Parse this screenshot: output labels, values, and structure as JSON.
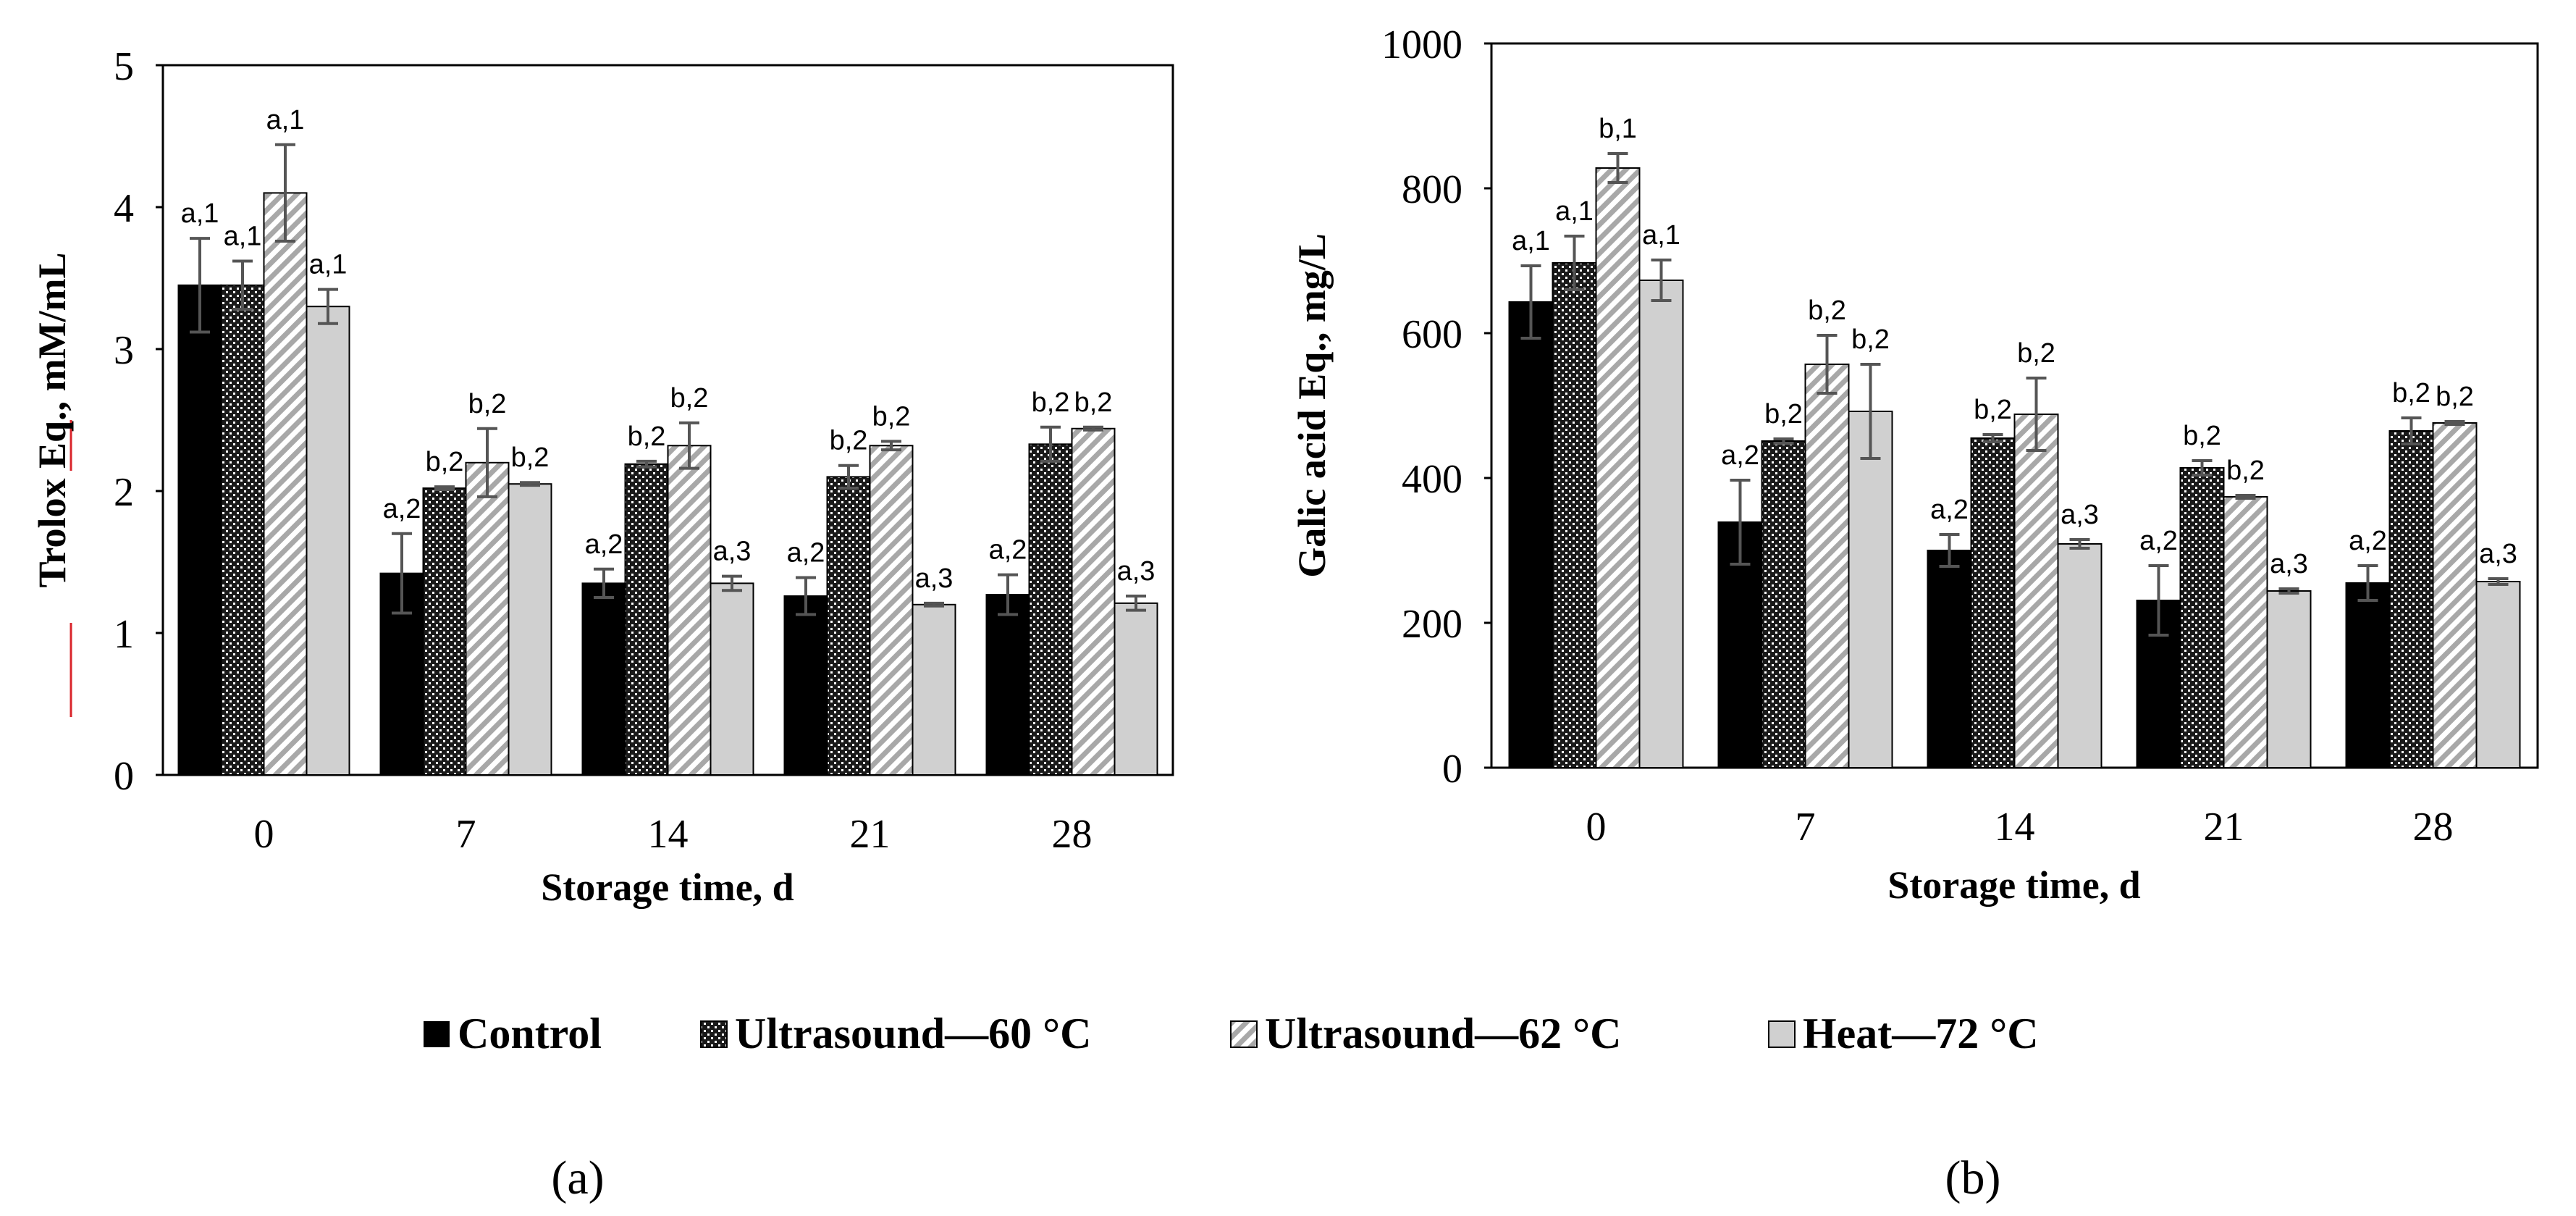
{
  "colors": {
    "control": "#000000",
    "us60": "#1a1a1a",
    "us62": "#b0b0b0",
    "heat": "#d0d0d0",
    "axis": "#000000",
    "error": "#555555",
    "underline": "#d9252b"
  },
  "legend": [
    {
      "key": "control",
      "label": "Control"
    },
    {
      "key": "us60",
      "label": "Ultrasound—60 °C"
    },
    {
      "key": "us62",
      "label": "Ultrasound—62 °C"
    },
    {
      "key": "heat",
      "label": "Heat—72 °C"
    }
  ],
  "panels": {
    "a": "(a)",
    "b": "(b)"
  },
  "chart_data": [
    {
      "type": "bar",
      "title": "",
      "xlabel": "Storage time, d",
      "ylabel": "Trolox Eq., mM/mL",
      "categories": [
        "0",
        "7",
        "14",
        "21",
        "28"
      ],
      "ylim": [
        0,
        5
      ],
      "yticks": [
        0,
        1,
        2,
        3,
        4,
        5
      ],
      "series": [
        {
          "name": "Control",
          "key": "control",
          "values": [
            3.45,
            1.42,
            1.35,
            1.26,
            1.27
          ],
          "errors": [
            0.33,
            0.28,
            0.1,
            0.13,
            0.14
          ],
          "labels": [
            "a,1",
            "a,2",
            "a,2",
            "a,2",
            "a,2"
          ]
        },
        {
          "name": "Ultrasound—60 °C",
          "key": "us60",
          "values": [
            3.45,
            2.02,
            2.19,
            2.1,
            2.33
          ],
          "errors": [
            0.17,
            0.01,
            0.02,
            0.08,
            0.12
          ],
          "labels": [
            "a,1",
            "b,2",
            "b,2",
            "b,2",
            "b,2"
          ]
        },
        {
          "name": "Ultrasound—62 °C",
          "key": "us62",
          "values": [
            4.1,
            2.2,
            2.32,
            2.32,
            2.44
          ],
          "errors": [
            0.34,
            0.24,
            0.16,
            0.03,
            0.01
          ],
          "labels": [
            "a,1",
            "b,2",
            "b,2",
            "b,2",
            "b,2"
          ]
        },
        {
          "name": "Heat—72 °C",
          "key": "heat",
          "values": [
            3.3,
            2.05,
            1.35,
            1.2,
            1.21
          ],
          "errors": [
            0.12,
            0.01,
            0.05,
            0.01,
            0.05
          ],
          "labels": [
            "a,1",
            "b,2",
            "a,3",
            "a,3",
            "a,3"
          ]
        }
      ]
    },
    {
      "type": "bar",
      "title": "",
      "xlabel": "Storage time, d",
      "ylabel": "Galic acid Eq., mg/L",
      "categories": [
        "0",
        "7",
        "14",
        "21",
        "28"
      ],
      "ylim": [
        0,
        1000
      ],
      "yticks": [
        0,
        200,
        400,
        600,
        800,
        1000
      ],
      "series": [
        {
          "name": "Control",
          "key": "control",
          "values": [
            643,
            339,
            300,
            231,
            255
          ],
          "errors": [
            50,
            58,
            22,
            48,
            24
          ],
          "labels": [
            "a,1",
            "a,2",
            "a,2",
            "a,2",
            "a,2"
          ]
        },
        {
          "name": "Ultrasound—60 °C",
          "key": "us60",
          "values": [
            697,
            451,
            455,
            414,
            465
          ],
          "errors": [
            37,
            3,
            5,
            10,
            18
          ],
          "labels": [
            "a,1",
            "b,2",
            "b,2",
            "b,2",
            "b,2"
          ]
        },
        {
          "name": "Ultrasound—62 °C",
          "key": "us62",
          "values": [
            828,
            557,
            488,
            374,
            476
          ],
          "errors": [
            20,
            40,
            50,
            2,
            2
          ],
          "labels": [
            "b,1",
            "b,2",
            "b,2",
            "b,2",
            "b,2"
          ]
        },
        {
          "name": "Heat—72 °C",
          "key": "heat",
          "values": [
            673,
            492,
            309,
            244,
            257
          ],
          "errors": [
            28,
            65,
            6,
            3,
            4
          ],
          "labels": [
            "a,1",
            "b,2",
            "a,3",
            "a,3",
            "a,3"
          ]
        }
      ]
    }
  ]
}
